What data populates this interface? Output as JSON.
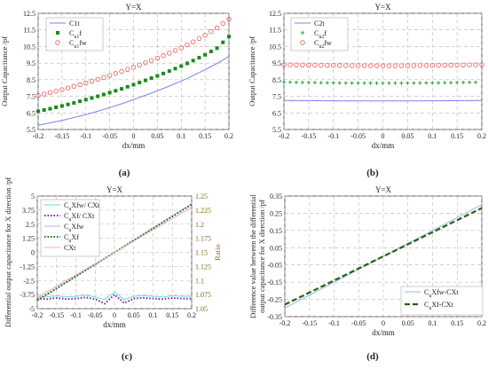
{
  "figure": {
    "panel_labels": [
      "(a)",
      "(b)",
      "(c)",
      "(d)"
    ]
  },
  "chart_data": [
    {
      "panel": "(a)",
      "type": "line",
      "title": "Y=X",
      "xlabel": "dx/mm",
      "ylabel": "Output Capacitance /pf",
      "xlim": [
        -0.2,
        0.2
      ],
      "ylim": [
        5.5,
        12.5
      ],
      "xticks": [
        "-0.2",
        "-0.15",
        "-0.1",
        "-0.05",
        "0",
        "0.05",
        "0.1",
        "0.15",
        "0.2"
      ],
      "yticks": [
        "5.5",
        "6.5",
        "7.5",
        "8.5",
        "9.5",
        "10.5",
        "11.5",
        "12.5"
      ],
      "grid": true,
      "legend": "top-left",
      "x": [
        -0.2,
        -0.175,
        -0.15,
        -0.125,
        -0.1,
        -0.075,
        -0.05,
        -0.025,
        0,
        0.025,
        0.05,
        0.075,
        0.1,
        0.125,
        0.15,
        0.175,
        0.2
      ],
      "series": [
        {
          "name": "C1t",
          "name_main": "C1t",
          "name_sub": "",
          "name_tail": "",
          "color": "#7f7ff0",
          "style": "line",
          "values": [
            5.75,
            5.9,
            6.05,
            6.22,
            6.4,
            6.6,
            6.82,
            7.05,
            7.3,
            7.56,
            7.83,
            8.12,
            8.42,
            8.75,
            9.1,
            9.48,
            9.9
          ]
        },
        {
          "name": "Cu1f",
          "name_main": "C",
          "name_sub": "u1",
          "name_tail": "f",
          "color": "#1a8a1a",
          "style": "square",
          "values": [
            6.6,
            6.75,
            6.92,
            7.1,
            7.3,
            7.5,
            7.72,
            7.95,
            8.2,
            8.46,
            8.73,
            9.02,
            9.32,
            9.65,
            10.0,
            10.4,
            11.1
          ]
        },
        {
          "name": "Cu1fw",
          "name_main": "C",
          "name_sub": "u1",
          "name_tail": "fw",
          "color": "#ee5555",
          "style": "circle",
          "values": [
            7.55,
            7.72,
            7.9,
            8.1,
            8.3,
            8.52,
            8.75,
            9.0,
            9.25,
            9.52,
            9.8,
            10.1,
            10.42,
            10.78,
            11.18,
            11.62,
            12.15
          ]
        }
      ]
    },
    {
      "panel": "(b)",
      "type": "line",
      "title": "Y=X",
      "xlabel": "dx/mm",
      "ylabel": "Output Capacitance /pf",
      "xlim": [
        -0.2,
        0.2
      ],
      "ylim": [
        5.5,
        12.5
      ],
      "xticks": [
        "-0.2",
        "-0.15",
        "-0.1",
        "-0.05",
        "0",
        "0.05",
        "0.1",
        "0.15",
        "0.2"
      ],
      "yticks": [
        "5.5",
        "6.5",
        "7.5",
        "8.5",
        "9.5",
        "10.5",
        "11.5",
        "12.5"
      ],
      "grid": true,
      "legend": "top-left",
      "x": [
        -0.2,
        -0.175,
        -0.15,
        -0.125,
        -0.1,
        -0.075,
        -0.05,
        -0.025,
        0,
        0.025,
        0.05,
        0.075,
        0.1,
        0.125,
        0.15,
        0.175,
        0.2
      ],
      "series": [
        {
          "name": "C2t",
          "name_main": "C2t",
          "name_sub": "",
          "name_tail": "",
          "color": "#7f7ff0",
          "style": "line",
          "values": [
            7.25,
            7.24,
            7.24,
            7.23,
            7.23,
            7.22,
            7.22,
            7.22,
            7.22,
            7.22,
            7.22,
            7.22,
            7.23,
            7.23,
            7.24,
            7.24,
            7.25
          ]
        },
        {
          "name": "Cu2f",
          "name_main": "C",
          "name_sub": "u2",
          "name_tail": "f",
          "color": "#22a722",
          "style": "cross",
          "values": [
            8.35,
            8.34,
            8.33,
            8.32,
            8.31,
            8.3,
            8.3,
            8.29,
            8.29,
            8.29,
            8.3,
            8.3,
            8.31,
            8.32,
            8.33,
            8.34,
            8.35
          ]
        },
        {
          "name": "Cu2fw",
          "name_main": "C",
          "name_sub": "u2",
          "name_tail": "fw",
          "color": "#ee5555",
          "style": "circle",
          "values": [
            9.4,
            9.39,
            9.38,
            9.37,
            9.36,
            9.35,
            9.35,
            9.34,
            9.34,
            9.34,
            9.35,
            9.35,
            9.36,
            9.37,
            9.38,
            9.39,
            9.4
          ]
        }
      ]
    },
    {
      "panel": "(c)",
      "type": "line",
      "title": "Y=X",
      "xlabel": "dx/mm",
      "ylabel": "Differential output capacitance for X direction /pf",
      "ylabel_right": "Ratio",
      "xlim": [
        -0.2,
        0.2
      ],
      "ylim": [
        -5,
        5
      ],
      "ylim_right": [
        1.05,
        1.25
      ],
      "xticks": [
        "-0.2",
        "-0.15",
        "-0.1",
        "-0.05",
        "0",
        "0.05",
        "0.1",
        "0.15",
        "0.2"
      ],
      "yticks": [
        "-5",
        "-3.75",
        "-2.5",
        "-1.25",
        "0",
        "1.25",
        "2.5",
        "3.75",
        "5"
      ],
      "yticks_right": [
        "1.05",
        "1.075",
        "1.1",
        "1.125",
        "1.15",
        "1.175",
        "1.2",
        "1.225",
        "1.25"
      ],
      "grid": true,
      "legend": "top-left",
      "x": [
        -0.2,
        -0.175,
        -0.15,
        -0.125,
        -0.1,
        -0.075,
        -0.05,
        -0.025,
        0,
        0.025,
        0.05,
        0.075,
        0.1,
        0.125,
        0.15,
        0.175,
        0.2
      ],
      "series": [
        {
          "name": "CuXfw/CXt",
          "name_main": "C",
          "name_sub": "u",
          "name_tail": "Xfw/ CXt",
          "axis": "right",
          "color": "#66ddd0",
          "style": "line",
          "values": [
            1.072,
            1.071,
            1.073,
            1.071,
            1.072,
            1.074,
            1.071,
            1.066,
            1.08,
            1.066,
            1.072,
            1.073,
            1.072,
            1.071,
            1.073,
            1.072,
            1.072
          ]
        },
        {
          "name": "CuXf/CXt",
          "name_main": "C",
          "name_sub": "u",
          "name_tail": "Xf/ CXt",
          "axis": "right",
          "color": "#7a1fa0",
          "style": "dotted",
          "values": [
            1.068,
            1.067,
            1.069,
            1.067,
            1.068,
            1.07,
            1.067,
            1.059,
            1.075,
            1.06,
            1.068,
            1.069,
            1.068,
            1.067,
            1.069,
            1.068,
            1.068
          ]
        },
        {
          "name": "CuXfw",
          "name_main": "C",
          "name_sub": "u",
          "name_tail": "Xfw",
          "axis": "left",
          "color": "#b0b0ff",
          "style": "line",
          "values": [
            -4.3,
            -3.76,
            -3.22,
            -2.69,
            -2.15,
            -1.61,
            -1.08,
            -0.54,
            0,
            0.54,
            1.08,
            1.61,
            2.15,
            2.69,
            3.22,
            3.76,
            4.3
          ]
        },
        {
          "name": "CuXf",
          "name_main": "C",
          "name_sub": "u",
          "name_tail": "Xf",
          "axis": "left",
          "color": "#1a6a1a",
          "style": "dotted",
          "values": [
            -4.25,
            -3.72,
            -3.19,
            -2.66,
            -2.13,
            -1.59,
            -1.06,
            -0.53,
            0,
            0.53,
            1.06,
            1.59,
            2.13,
            2.66,
            3.19,
            3.72,
            4.25
          ]
        },
        {
          "name": "CXt",
          "name_main": "CXt",
          "name_sub": "",
          "name_tail": "",
          "axis": "left",
          "color": "#f0b0a0",
          "style": "line",
          "values": [
            -4.0,
            -3.5,
            -3.0,
            -2.5,
            -2.0,
            -1.5,
            -1.0,
            -0.5,
            0,
            0.5,
            1.0,
            1.5,
            2.0,
            2.5,
            3.0,
            3.5,
            4.0
          ]
        }
      ]
    },
    {
      "panel": "(d)",
      "type": "line",
      "title": "Y=X",
      "xlabel": "dx/mm",
      "ylabel_lines": [
        "Difference value between the differential",
        "output capacitance for X direction /pf"
      ],
      "xlim": [
        -0.2,
        0.2
      ],
      "ylim": [
        -0.35,
        0.35
      ],
      "xticks": [
        "-0.2",
        "-0.15",
        "-0.1",
        "-0.05",
        "0",
        "0.05",
        "0.1",
        "0.15",
        "0.2"
      ],
      "yticks": [
        "-0.35",
        "-0.25",
        "-0.15",
        "-0.05",
        "0.05",
        "0.15",
        "0.25",
        "0.35"
      ],
      "grid": true,
      "legend": "bottom-right",
      "x": [
        -0.2,
        -0.15,
        -0.1,
        -0.05,
        0,
        0.05,
        0.1,
        0.15,
        0.2
      ],
      "series": [
        {
          "name": "CuXfw-CXt",
          "name_main": "C",
          "name_sub": "u",
          "name_tail": "Xfw-CXt",
          "color": "#88bbee",
          "style": "line",
          "values": [
            -0.3,
            -0.225,
            -0.15,
            -0.075,
            0,
            0.075,
            0.15,
            0.225,
            0.3
          ]
        },
        {
          "name": "CuXf-CXt",
          "name_main": "C",
          "name_sub": "u",
          "name_tail": "Xf-CXt",
          "color": "#2e5e10",
          "style": "dash",
          "values": [
            -0.28,
            -0.21,
            -0.14,
            -0.07,
            0,
            0.07,
            0.14,
            0.21,
            0.28
          ]
        }
      ]
    }
  ]
}
